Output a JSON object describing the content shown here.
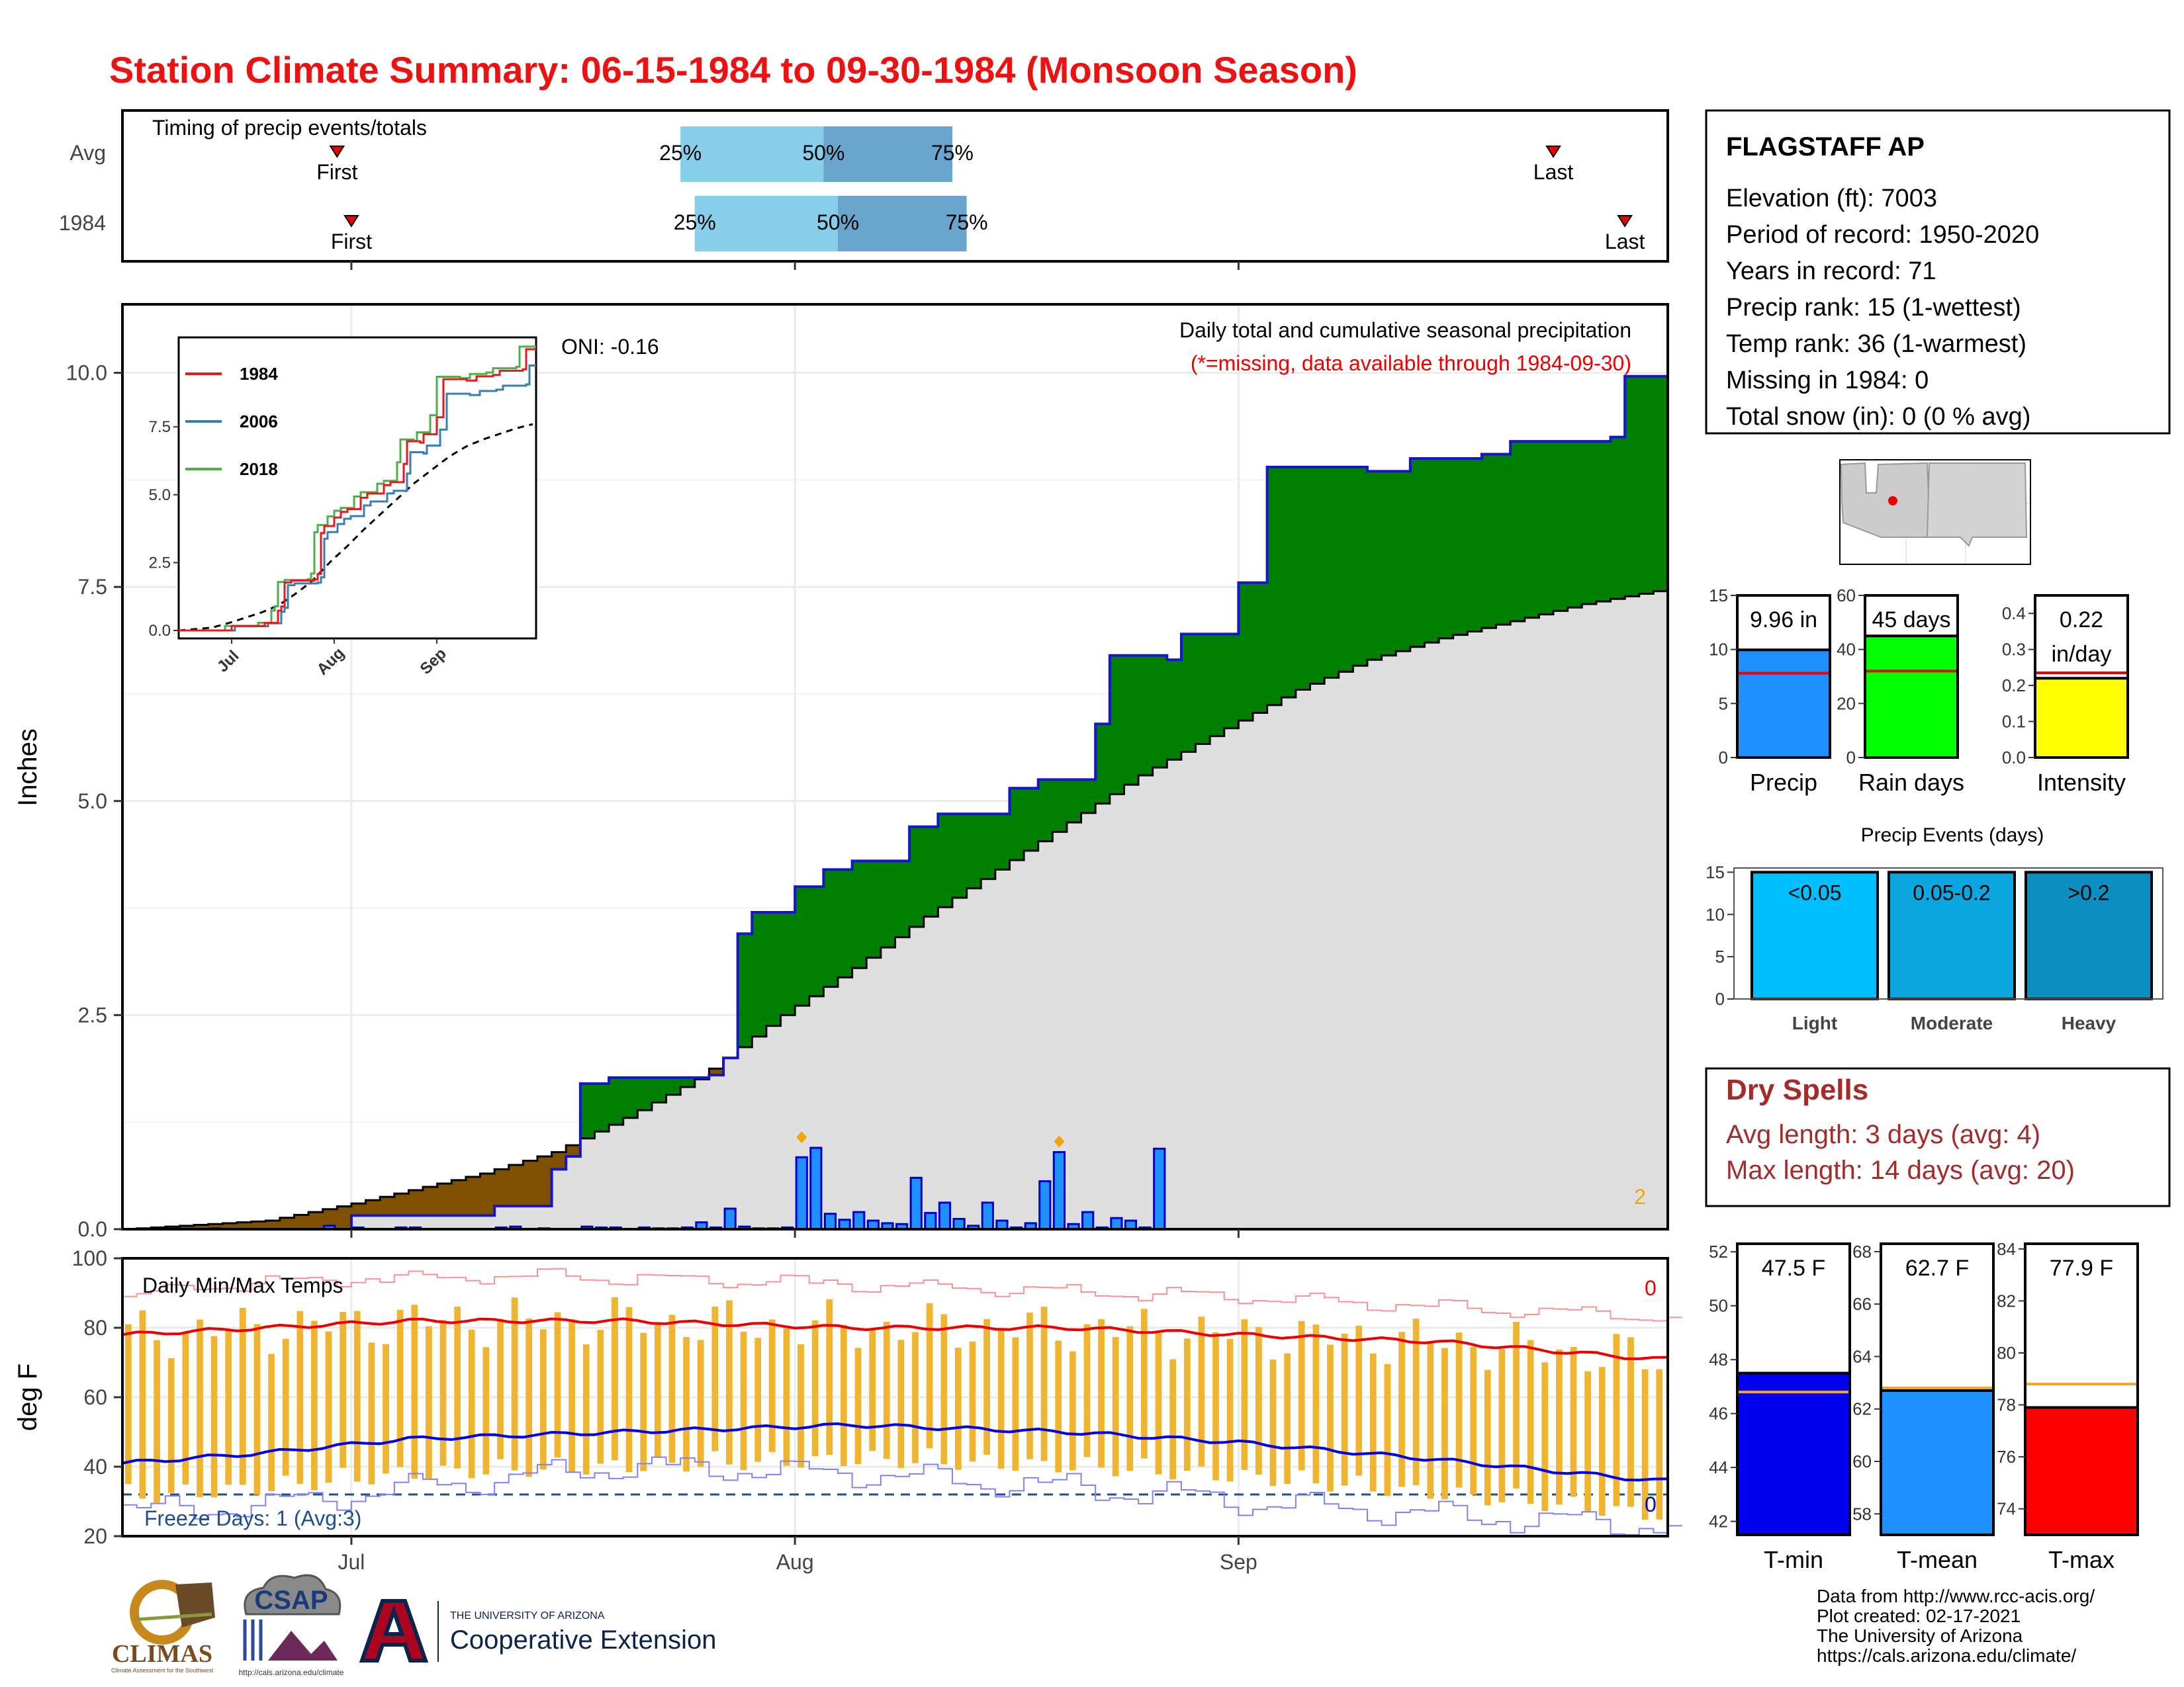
{
  "title": "Station Climate Summary: 06-15-1984 to 09-30-1984 (Monsoon Season)",
  "colors": {
    "title": "#ee1111",
    "green": "#008000",
    "brown": "#7f5000",
    "bar": "#1e90ff",
    "grey": "#dfdfdf",
    "blue_line": "#0000cc",
    "red": "#ee0000",
    "orange": "#f5b60f",
    "dryspell": "#a52a2a",
    "navy": "#1b4f8f"
  },
  "timing": {
    "label": "Timing of precip events/totals",
    "rows": [
      {
        "name": "Avg",
        "first": "06-30",
        "p25": "07-24",
        "p50": "08-03",
        "p75": "08-12",
        "last": "09-23"
      },
      {
        "name": "1984",
        "first": "07-01",
        "p25": "07-25",
        "p50": "08-04",
        "p75": "08-13",
        "last": "09-28"
      }
    ],
    "first_label": "First",
    "last_label": "Last",
    "pct_labels": [
      "25%",
      "50%",
      "75%"
    ]
  },
  "precip_panel": {
    "ylabel": "Inches",
    "ylim": [
      0,
      10.8
    ],
    "yticks": [
      "0.0",
      "2.5",
      "5.0",
      "7.5",
      "10.0"
    ],
    "annotation_title": "Daily total and cumulative seasonal precipitation",
    "annotation_missing": "(*=missing, data available through 1984-09-30)",
    "oni": "ONI: -0.16",
    "right_label": "2",
    "inset": {
      "yticks": [
        "0.0",
        "2.5",
        "5.0",
        "7.5"
      ],
      "xticks": [
        "Jul",
        "Aug",
        "Sep"
      ],
      "legend": [
        {
          "name": "1984",
          "color": "#e41a1c"
        },
        {
          "name": "2006",
          "color": "#377eb8"
        },
        {
          "name": "2018",
          "color": "#4daf4a"
        }
      ]
    }
  },
  "temp_panel": {
    "ylabel": "deg F",
    "title": "Daily Min/Max Temps",
    "yticks": [
      "20",
      "40",
      "60",
      "80",
      "100"
    ],
    "freeze": "Freeze Days: 1 (Avg:3)",
    "top_count": "0",
    "bottom_count": "0"
  },
  "x_months": [
    "Jul",
    "Aug",
    "Sep"
  ],
  "station": {
    "name": "FLAGSTAFF AP",
    "lines": [
      "Elevation (ft): 7003",
      "Period of record: 1950-2020",
      "Years in record: 71",
      "Precip rank: 15 (1-wettest)",
      "Temp rank: 36 (1-warmest)",
      "Missing in 1984: 0",
      "Total snow (in): 0 (0 % avg)"
    ]
  },
  "summary_bars": [
    {
      "label": "Precip",
      "value_text": "9.96 in",
      "value": 9.96,
      "avg": 7.8,
      "ylim": [
        0,
        15
      ],
      "ticks": [
        "0",
        "5",
        "10",
        "15"
      ],
      "color": "#1e90ff"
    },
    {
      "label": "Rain days",
      "value_text": "45 days",
      "value": 45,
      "avg": 32,
      "ylim": [
        0,
        60
      ],
      "ticks": [
        "0",
        "20",
        "40",
        "60"
      ],
      "color": "#00ff00"
    },
    {
      "label": "Intensity",
      "value_text": "0.22",
      "value_text2": "in/day",
      "value": 0.22,
      "avg": 0.235,
      "ylim": [
        0,
        0.45
      ],
      "ticks": [
        "0.0",
        "0.1",
        "0.2",
        "0.3",
        "0.4"
      ],
      "color": "#ffff00"
    }
  ],
  "events": {
    "title": "Precip Events (days)",
    "ticks": [
      "0",
      "5",
      "10",
      "15"
    ],
    "bars": [
      {
        "label": "Light",
        "text": "<0.05",
        "color": "#00bfff"
      },
      {
        "label": "Moderate",
        "text": "0.05-0.2",
        "color": "#0aa6e0"
      },
      {
        "label": "Heavy",
        "text": ">0.2",
        "color": "#0a8fc0"
      }
    ]
  },
  "dry_spells": {
    "title": "Dry Spells",
    "avg": "Avg length: 3 days (avg: 4)",
    "max": "Max length: 14 days (avg: 20)"
  },
  "temp_bars": [
    {
      "label": "T-min",
      "value_text": "47.5 F",
      "value": 47.5,
      "avg": 46.8,
      "ylim": [
        41.5,
        52.3
      ],
      "ticks": [
        "42",
        "44",
        "46",
        "48",
        "50",
        "52"
      ],
      "color": "#0000ee"
    },
    {
      "label": "T-mean",
      "value_text": "62.7 F",
      "value": 62.7,
      "avg": 62.8,
      "ylim": [
        57.2,
        68.3
      ],
      "ticks": [
        "58",
        "60",
        "62",
        "64",
        "66",
        "68"
      ],
      "color": "#1e90ff"
    },
    {
      "label": "T-max",
      "value_text": "77.9 F",
      "value": 77.9,
      "avg": 78.8,
      "ylim": [
        73.0,
        84.2
      ],
      "ticks": [
        "74",
        "76",
        "78",
        "80",
        "82",
        "84"
      ],
      "color": "#ff0000"
    }
  ],
  "credits": [
    "Data from http://www.rcc-acis.org/",
    "Plot created: 02-17-2021",
    "The University of Arizona",
    "https://cals.arizona.edu/climate/"
  ],
  "logos": {
    "climas": "CLIMAS",
    "climas_sub": "Climate Assessment for the Southwest",
    "csap": "CSAP",
    "csap_url": "http://cals.arizona.edu/climate",
    "ua_small": "THE UNIVERSITY OF ARIZONA",
    "ua_big": "Cooperative Extension"
  },
  "chart_data": {
    "type": "bar",
    "title": "Daily total and cumulative seasonal precipitation",
    "ylabel": "Inches",
    "ylim": [
      0,
      10.8
    ],
    "x_start": "1984-06-15",
    "x_end": "1984-09-30",
    "daily_precip": [
      {
        "x": "1984-06-21",
        "y": 0.01
      },
      {
        "x": "1984-06-29",
        "y": 0.04
      },
      {
        "x": "1984-07-01",
        "y": 0.02
      },
      {
        "x": "1984-07-04",
        "y": 0.02
      },
      {
        "x": "1984-07-05",
        "y": 0.02
      },
      {
        "x": "1984-07-11",
        "y": 0.02
      },
      {
        "x": "1984-07-12",
        "y": 0.03
      },
      {
        "x": "1984-07-14",
        "y": 0.01
      },
      {
        "x": "1984-07-17",
        "y": 0.03
      },
      {
        "x": "1984-07-18",
        "y": 0.02
      },
      {
        "x": "1984-07-19",
        "y": 0.02
      },
      {
        "x": "1984-07-21",
        "y": 0.02
      },
      {
        "x": "1984-07-22",
        "y": 0.01
      },
      {
        "x": "1984-07-23",
        "y": 0.01
      },
      {
        "x": "1984-07-24",
        "y": 0.02
      },
      {
        "x": "1984-07-25",
        "y": 0.08
      },
      {
        "x": "1984-07-26",
        "y": 0.02
      },
      {
        "x": "1984-07-27",
        "y": 0.24
      },
      {
        "x": "1984-07-28",
        "y": 0.03
      },
      {
        "x": "1984-07-29",
        "y": 0.01
      },
      {
        "x": "1984-07-30",
        "y": 0.01
      },
      {
        "x": "1984-07-31",
        "y": 0.02
      },
      {
        "x": "1984-08-01",
        "y": 0.84
      },
      {
        "x": "1984-08-02",
        "y": 0.95
      },
      {
        "x": "1984-08-03",
        "y": 0.18
      },
      {
        "x": "1984-08-04",
        "y": 0.11
      },
      {
        "x": "1984-08-05",
        "y": 0.2
      },
      {
        "x": "1984-08-06",
        "y": 0.1
      },
      {
        "x": "1984-08-07",
        "y": 0.07
      },
      {
        "x": "1984-08-08",
        "y": 0.06
      },
      {
        "x": "1984-08-09",
        "y": 0.6
      },
      {
        "x": "1984-08-10",
        "y": 0.19
      },
      {
        "x": "1984-08-11",
        "y": 0.31
      },
      {
        "x": "1984-08-12",
        "y": 0.12
      },
      {
        "x": "1984-08-13",
        "y": 0.04
      },
      {
        "x": "1984-08-14",
        "y": 0.31
      },
      {
        "x": "1984-08-15",
        "y": 0.1
      },
      {
        "x": "1984-08-16",
        "y": 0.02
      },
      {
        "x": "1984-08-17",
        "y": 0.07
      },
      {
        "x": "1984-08-18",
        "y": 0.56
      },
      {
        "x": "1984-08-19",
        "y": 0.9
      },
      {
        "x": "1984-08-20",
        "y": 0.06
      },
      {
        "x": "1984-08-21",
        "y": 0.2
      },
      {
        "x": "1984-08-22",
        "y": 0.02
      },
      {
        "x": "1984-08-23",
        "y": 0.13
      },
      {
        "x": "1984-08-24",
        "y": 0.1
      },
      {
        "x": "1984-08-25",
        "y": 0.02
      },
      {
        "x": "1984-08-26",
        "y": 0.94
      }
    ],
    "cumulative_1984": [
      {
        "x": "1984-06-15",
        "y": 0.0
      },
      {
        "x": "1984-07-01",
        "y": 0.16
      },
      {
        "x": "1984-07-11",
        "y": 0.27
      },
      {
        "x": "1984-07-15",
        "y": 0.7
      },
      {
        "x": "1984-07-16",
        "y": 0.85
      },
      {
        "x": "1984-07-17",
        "y": 1.7
      },
      {
        "x": "1984-07-19",
        "y": 1.77
      },
      {
        "x": "1984-07-26",
        "y": 1.8
      },
      {
        "x": "1984-07-27",
        "y": 2.0
      },
      {
        "x": "1984-07-28",
        "y": 3.45
      },
      {
        "x": "1984-07-29",
        "y": 3.7
      },
      {
        "x": "1984-08-01",
        "y": 4.0
      },
      {
        "x": "1984-08-03",
        "y": 4.2
      },
      {
        "x": "1984-08-05",
        "y": 4.3
      },
      {
        "x": "1984-08-09",
        "y": 4.7
      },
      {
        "x": "1984-08-11",
        "y": 4.85
      },
      {
        "x": "1984-08-16",
        "y": 5.15
      },
      {
        "x": "1984-08-18",
        "y": 5.25
      },
      {
        "x": "1984-08-22",
        "y": 5.9
      },
      {
        "x": "1984-08-23",
        "y": 6.7
      },
      {
        "x": "1984-08-27",
        "y": 6.65
      },
      {
        "x": "1984-08-28",
        "y": 6.95
      },
      {
        "x": "1984-09-01",
        "y": 7.55
      },
      {
        "x": "1984-09-03",
        "y": 8.9
      },
      {
        "x": "1984-09-10",
        "y": 8.85
      },
      {
        "x": "1984-09-13",
        "y": 9.0
      },
      {
        "x": "1984-09-18",
        "y": 9.05
      },
      {
        "x": "1984-09-20",
        "y": 9.2
      },
      {
        "x": "1984-09-27",
        "y": 9.25
      },
      {
        "x": "1984-09-28",
        "y": 9.96
      },
      {
        "x": "1984-09-30",
        "y": 9.96
      }
    ],
    "cumulative_avg": [
      {
        "x": "1984-06-15",
        "y": 0.0
      },
      {
        "x": "1984-06-25",
        "y": 0.1
      },
      {
        "x": "1984-07-01",
        "y": 0.3
      },
      {
        "x": "1984-07-10",
        "y": 0.65
      },
      {
        "x": "1984-07-15",
        "y": 0.9
      },
      {
        "x": "1984-07-20",
        "y": 1.3
      },
      {
        "x": "1984-07-25",
        "y": 1.75
      },
      {
        "x": "1984-07-31",
        "y": 2.5
      },
      {
        "x": "1984-08-05",
        "y": 3.05
      },
      {
        "x": "1984-08-10",
        "y": 3.65
      },
      {
        "x": "1984-08-15",
        "y": 4.2
      },
      {
        "x": "1984-08-20",
        "y": 4.75
      },
      {
        "x": "1984-08-25",
        "y": 5.3
      },
      {
        "x": "1984-08-31",
        "y": 5.85
      },
      {
        "x": "1984-09-05",
        "y": 6.3
      },
      {
        "x": "1984-09-10",
        "y": 6.65
      },
      {
        "x": "1984-09-15",
        "y": 6.9
      },
      {
        "x": "1984-09-20",
        "y": 7.1
      },
      {
        "x": "1984-09-25",
        "y": 7.3
      },
      {
        "x": "1984-09-30",
        "y": 7.45
      }
    ],
    "temperatures": {
      "ylim": [
        20,
        100
      ],
      "avg_max": [
        {
          "x": "1984-06-15",
          "y": 78
        },
        {
          "x": "1984-06-25",
          "y": 80
        },
        {
          "x": "1984-07-05",
          "y": 82
        },
        {
          "x": "1984-07-20",
          "y": 82
        },
        {
          "x": "1984-08-05",
          "y": 80
        },
        {
          "x": "1984-08-20",
          "y": 80
        },
        {
          "x": "1984-09-01",
          "y": 78
        },
        {
          "x": "1984-09-15",
          "y": 76
        },
        {
          "x": "1984-09-30",
          "y": 71
        }
      ],
      "avg_min": [
        {
          "x": "1984-06-15",
          "y": 41
        },
        {
          "x": "1984-06-25",
          "y": 44
        },
        {
          "x": "1984-07-05",
          "y": 48
        },
        {
          "x": "1984-07-20",
          "y": 50
        },
        {
          "x": "1984-08-05",
          "y": 52
        },
        {
          "x": "1984-08-20",
          "y": 50
        },
        {
          "x": "1984-09-01",
          "y": 47
        },
        {
          "x": "1984-09-15",
          "y": 42
        },
        {
          "x": "1984-09-30",
          "y": 36
        }
      ],
      "record_max": [
        {
          "x": "1984-06-15",
          "y": 88
        },
        {
          "x": "1984-06-20",
          "y": 92
        },
        {
          "x": "1984-07-01",
          "y": 94
        },
        {
          "x": "1984-07-15",
          "y": 95
        },
        {
          "x": "1984-08-01",
          "y": 93
        },
        {
          "x": "1984-08-15",
          "y": 91
        },
        {
          "x": "1984-09-01",
          "y": 89
        },
        {
          "x": "1984-09-15",
          "y": 86
        },
        {
          "x": "1984-09-30",
          "y": 83
        }
      ],
      "record_min": [
        {
          "x": "1984-06-15",
          "y": 27
        },
        {
          "x": "1984-06-25",
          "y": 29
        },
        {
          "x": "1984-07-05",
          "y": 34
        },
        {
          "x": "1984-07-20",
          "y": 40
        },
        {
          "x": "1984-08-05",
          "y": 38
        },
        {
          "x": "1984-08-20",
          "y": 34
        },
        {
          "x": "1984-09-01",
          "y": 30
        },
        {
          "x": "1984-09-15",
          "y": 26
        },
        {
          "x": "1984-09-30",
          "y": 23
        }
      ]
    }
  }
}
